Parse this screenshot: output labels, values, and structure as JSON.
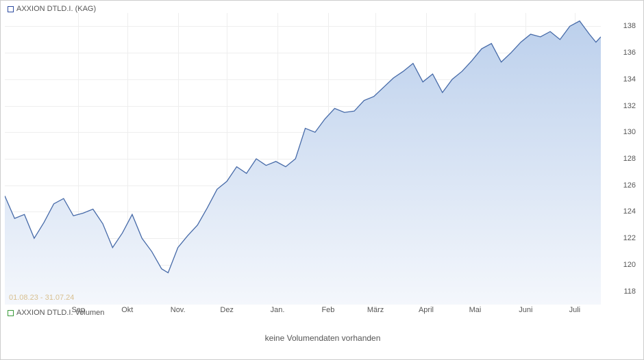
{
  "legend_price": {
    "swatch_border": "#2b4aa0",
    "swatch_fill": "#ffffff",
    "label": "AXXION DTLD.I. (KAG)"
  },
  "legend_volume": {
    "swatch_border": "#3a9a3a",
    "swatch_fill": "#ffffff",
    "label": "AXXION DTLD.I. Volumen"
  },
  "no_volume_text": "keine Volumendaten vorhanden",
  "date_range": "01.08.23 - 31.07.24",
  "price_chart": {
    "type": "area",
    "line_color": "#466aa8",
    "line_width": 1.3,
    "fill_top": "#bcd0ec",
    "fill_bottom": "#f4f7fc",
    "background_color": "#ffffff",
    "grid_color": "#eeeeee",
    "ylim": [
      117,
      139
    ],
    "yticks": [
      118,
      120,
      122,
      124,
      126,
      128,
      130,
      132,
      134,
      136,
      138
    ],
    "xlim": [
      0,
      365
    ],
    "xticks": [
      {
        "pos": 45,
        "label": "Sep"
      },
      {
        "pos": 75,
        "label": "Okt"
      },
      {
        "pos": 106,
        "label": "Nov."
      },
      {
        "pos": 136,
        "label": "Dez"
      },
      {
        "pos": 167,
        "label": "Jan."
      },
      {
        "pos": 198,
        "label": "Feb"
      },
      {
        "pos": 227,
        "label": "März"
      },
      {
        "pos": 258,
        "label": "April"
      },
      {
        "pos": 288,
        "label": "Mai"
      },
      {
        "pos": 319,
        "label": "Juni"
      },
      {
        "pos": 349,
        "label": "Juli"
      }
    ],
    "series": [
      {
        "x": 0,
        "y": 125.2
      },
      {
        "x": 6,
        "y": 123.5
      },
      {
        "x": 12,
        "y": 123.8
      },
      {
        "x": 18,
        "y": 122.0
      },
      {
        "x": 24,
        "y": 123.2
      },
      {
        "x": 30,
        "y": 124.6
      },
      {
        "x": 36,
        "y": 125.0
      },
      {
        "x": 42,
        "y": 123.7
      },
      {
        "x": 48,
        "y": 123.9
      },
      {
        "x": 54,
        "y": 124.2
      },
      {
        "x": 60,
        "y": 123.1
      },
      {
        "x": 66,
        "y": 121.3
      },
      {
        "x": 72,
        "y": 122.4
      },
      {
        "x": 78,
        "y": 123.8
      },
      {
        "x": 84,
        "y": 122.0
      },
      {
        "x": 90,
        "y": 121.0
      },
      {
        "x": 96,
        "y": 119.7
      },
      {
        "x": 100,
        "y": 119.4
      },
      {
        "x": 106,
        "y": 121.3
      },
      {
        "x": 112,
        "y": 122.2
      },
      {
        "x": 118,
        "y": 123.0
      },
      {
        "x": 124,
        "y": 124.3
      },
      {
        "x": 130,
        "y": 125.7
      },
      {
        "x": 136,
        "y": 126.3
      },
      {
        "x": 142,
        "y": 127.4
      },
      {
        "x": 148,
        "y": 126.9
      },
      {
        "x": 154,
        "y": 128.0
      },
      {
        "x": 160,
        "y": 127.5
      },
      {
        "x": 166,
        "y": 127.8
      },
      {
        "x": 172,
        "y": 127.4
      },
      {
        "x": 178,
        "y": 128.0
      },
      {
        "x": 184,
        "y": 130.3
      },
      {
        "x": 190,
        "y": 130.0
      },
      {
        "x": 196,
        "y": 131.0
      },
      {
        "x": 202,
        "y": 131.8
      },
      {
        "x": 208,
        "y": 131.5
      },
      {
        "x": 214,
        "y": 131.6
      },
      {
        "x": 220,
        "y": 132.4
      },
      {
        "x": 226,
        "y": 132.7
      },
      {
        "x": 232,
        "y": 133.4
      },
      {
        "x": 238,
        "y": 134.1
      },
      {
        "x": 244,
        "y": 134.6
      },
      {
        "x": 250,
        "y": 135.2
      },
      {
        "x": 256,
        "y": 133.8
      },
      {
        "x": 262,
        "y": 134.4
      },
      {
        "x": 268,
        "y": 133.0
      },
      {
        "x": 274,
        "y": 134.0
      },
      {
        "x": 280,
        "y": 134.6
      },
      {
        "x": 286,
        "y": 135.4
      },
      {
        "x": 292,
        "y": 136.3
      },
      {
        "x": 298,
        "y": 136.7
      },
      {
        "x": 304,
        "y": 135.3
      },
      {
        "x": 310,
        "y": 136.0
      },
      {
        "x": 316,
        "y": 136.8
      },
      {
        "x": 322,
        "y": 137.4
      },
      {
        "x": 328,
        "y": 137.2
      },
      {
        "x": 334,
        "y": 137.6
      },
      {
        "x": 340,
        "y": 137.0
      },
      {
        "x": 346,
        "y": 138.0
      },
      {
        "x": 352,
        "y": 138.4
      },
      {
        "x": 358,
        "y": 137.4
      },
      {
        "x": 362,
        "y": 136.8
      },
      {
        "x": 365,
        "y": 137.2
      }
    ]
  }
}
